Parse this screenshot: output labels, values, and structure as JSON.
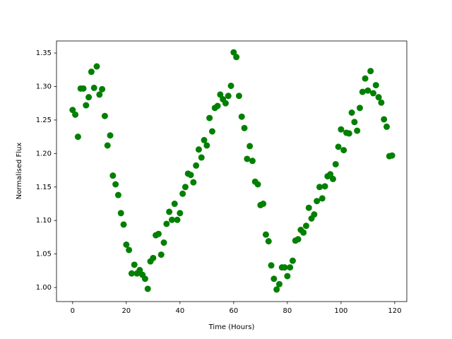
{
  "chart_data": {
    "type": "scatter",
    "xlabel": "Time (Hours)",
    "ylabel": "Normalised Flux",
    "xlim": [
      -6,
      124.5
    ],
    "ylim": [
      0.979,
      1.368
    ],
    "xticks": [
      0,
      20,
      40,
      60,
      80,
      100,
      120
    ],
    "yticks": [
      {
        "value": 1.0,
        "label": "1.00"
      },
      1.05,
      {
        "value": 1.1,
        "label": "1.10"
      },
      1.15,
      {
        "value": 1.2,
        "label": "1.20"
      },
      1.25,
      {
        "value": 1.3,
        "label": "1.30"
      },
      1.35
    ],
    "grid": false,
    "series": [
      {
        "color": "#008000",
        "x": [
          0,
          1,
          2,
          3,
          4,
          5,
          6,
          7,
          8,
          9,
          10,
          11,
          12,
          13,
          14,
          15,
          16,
          17,
          18,
          19,
          20,
          21,
          22,
          23,
          24,
          25,
          26,
          27,
          28,
          29,
          30,
          31,
          32,
          33,
          34,
          35,
          36,
          37,
          38,
          39,
          40,
          41,
          42,
          43,
          44,
          45,
          46,
          47,
          48,
          49,
          50,
          51,
          52,
          53,
          54,
          55,
          56,
          57,
          58,
          59,
          60,
          61,
          62,
          63,
          64,
          65,
          66,
          67,
          68,
          69,
          70,
          71,
          72,
          73,
          74,
          75,
          76,
          77,
          78,
          79,
          80,
          81,
          82,
          83,
          84,
          85,
          86,
          87,
          88,
          89,
          90,
          91,
          92,
          93,
          94,
          95,
          96,
          97,
          98,
          99,
          100,
          101,
          102,
          103,
          104,
          105,
          106,
          107,
          108,
          109,
          110,
          111,
          112,
          113,
          114,
          115,
          116,
          117,
          118,
          119
        ],
        "values": [
          1.265,
          1.258,
          1.225,
          1.297,
          1.297,
          1.272,
          1.284,
          1.322,
          1.298,
          1.33,
          1.288,
          1.296,
          1.256,
          1.212,
          1.227,
          1.167,
          1.154,
          1.138,
          1.111,
          1.094,
          1.064,
          1.056,
          1.021,
          1.034,
          1.021,
          1.026,
          1.019,
          1.013,
          0.998,
          1.039,
          1.044,
          1.078,
          1.08,
          1.049,
          1.067,
          1.095,
          1.113,
          1.101,
          1.125,
          1.101,
          1.111,
          1.14,
          1.15,
          1.17,
          1.168,
          1.157,
          1.182,
          1.206,
          1.194,
          1.22,
          1.212,
          1.253,
          1.233,
          1.268,
          1.271,
          1.288,
          1.281,
          1.275,
          1.286,
          1.301,
          1.351,
          1.344,
          1.286,
          1.255,
          1.238,
          1.192,
          1.211,
          1.189,
          1.158,
          1.154,
          1.123,
          1.125,
          1.079,
          1.069,
          1.033,
          1.013,
          0.997,
          1.005,
          1.03,
          1.03,
          1.017,
          1.03,
          1.04,
          1.07,
          1.072,
          1.086,
          1.082,
          1.092,
          1.119,
          1.103,
          1.109,
          1.129,
          1.15,
          1.133,
          1.151,
          1.166,
          1.169,
          1.162,
          1.184,
          1.21,
          1.236,
          1.205,
          1.231,
          1.23,
          1.261,
          1.247,
          1.234,
          1.268,
          1.292,
          1.312,
          1.294,
          1.323,
          1.29,
          1.302,
          1.284,
          1.276,
          1.251,
          1.24,
          1.196,
          1.197
        ]
      }
    ]
  }
}
